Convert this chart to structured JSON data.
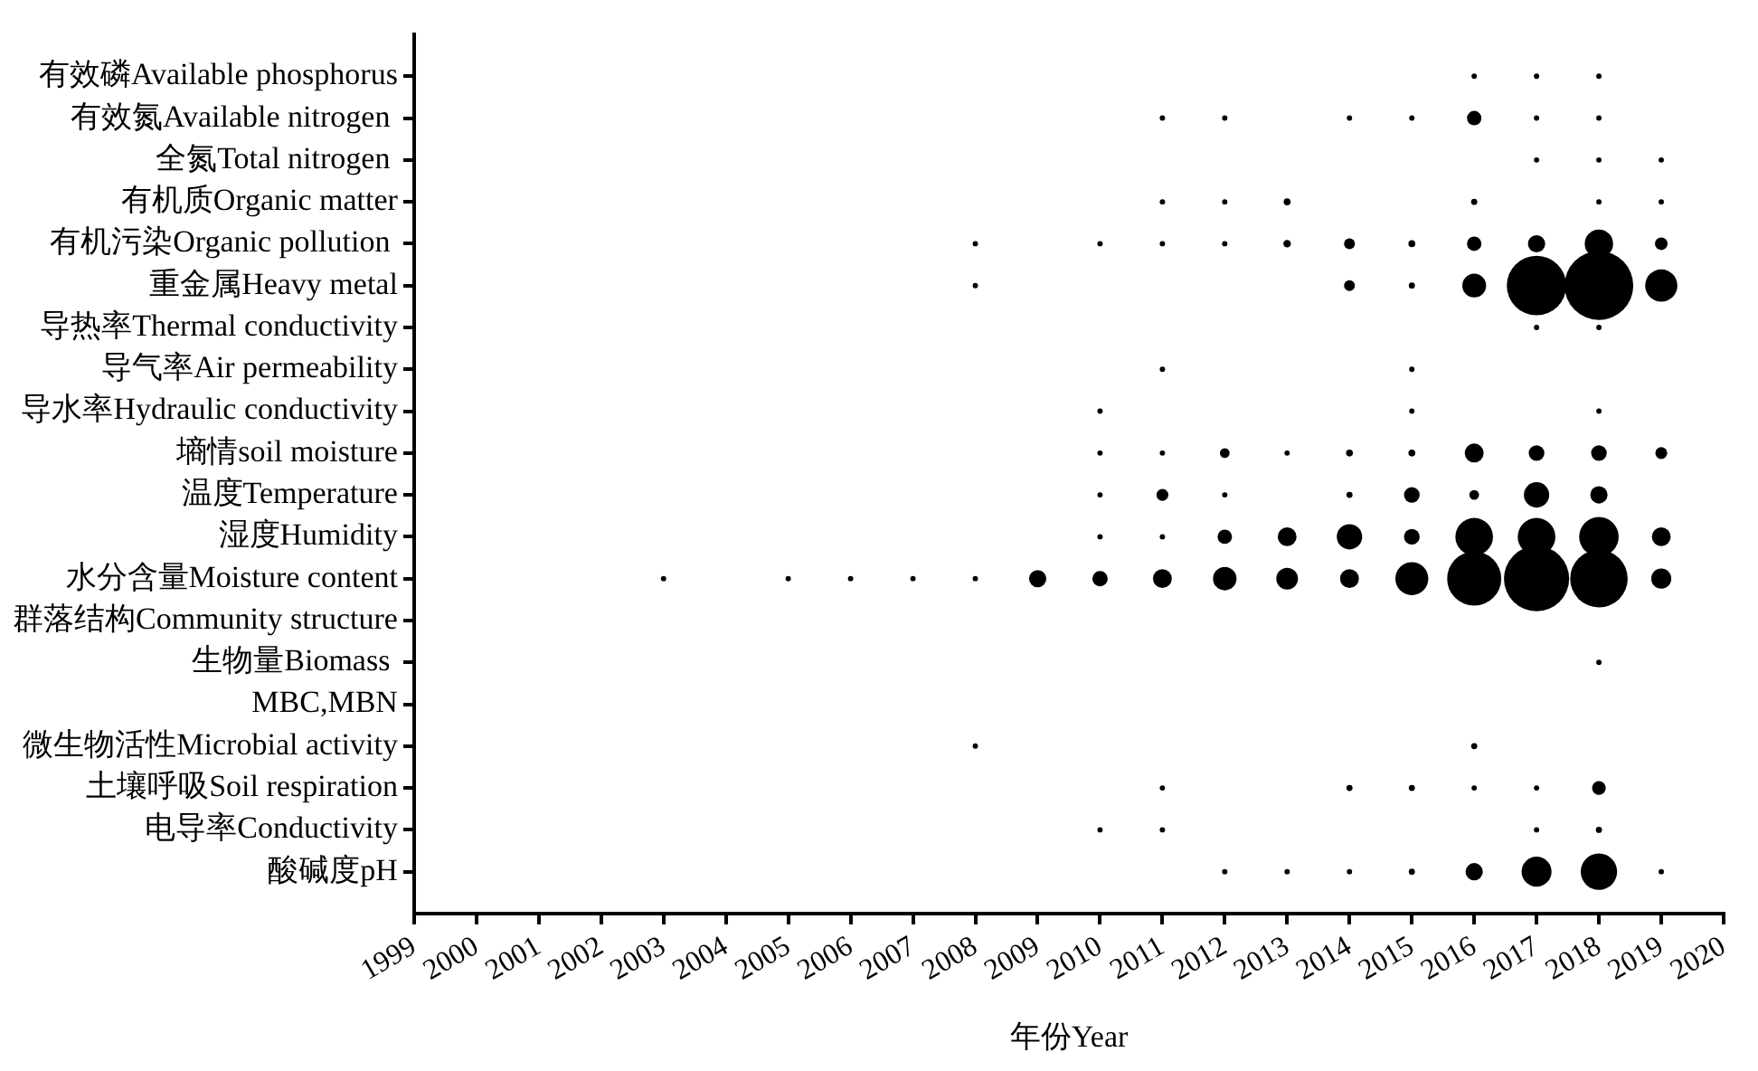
{
  "chart_data": {
    "type": "bubble",
    "orientation": "horizontal",
    "xlabel": "年份Year",
    "categories": [
      "有效磷Available phosphorus",
      "有效氮Available nitrogen ",
      "全氮Total nitrogen ",
      "有机质Organic matter",
      "有机污染Organic pollution ",
      "重金属Heavy metal",
      "导热率Thermal conductivity",
      "导气率Air permeability",
      "导水率Hydraulic conductivity",
      "墒情soil moisture",
      "温度Temperature",
      "湿度Humidity",
      "水分含量Moisture content",
      "群落结构Community structure",
      "生物量Biomass ",
      "MBC,MBN",
      "微生物活性Microbial activity",
      "土壤呼吸Soil respiration",
      "电导率Conductivity",
      "酸碱度pH"
    ],
    "xlim": [
      1999,
      2020
    ],
    "xticks": [
      1999,
      2000,
      2001,
      2002,
      2003,
      2004,
      2005,
      2006,
      2007,
      2008,
      2009,
      2010,
      2011,
      2012,
      2013,
      2014,
      2015,
      2016,
      2017,
      2018,
      2019,
      2020
    ],
    "series": [
      {
        "color": "#000000",
        "values": [
          null,
          null,
          null,
          null,
          null,
          null,
          null,
          null,
          null,
          null,
          null,
          null,
          2003,
          null,
          null,
          null,
          null,
          null,
          null,
          null
        ],
        "sizes": [
          null,
          null,
          null,
          null,
          null,
          null,
          null,
          null,
          null,
          null,
          null,
          null,
          0.006,
          null,
          null,
          null,
          null,
          null,
          null,
          null
        ]
      },
      {
        "color": "#000000",
        "values": [
          null,
          null,
          null,
          null,
          null,
          null,
          null,
          null,
          null,
          null,
          null,
          null,
          2005,
          null,
          null,
          null,
          null,
          null,
          null,
          null
        ],
        "sizes": [
          null,
          null,
          null,
          null,
          null,
          null,
          null,
          null,
          null,
          null,
          null,
          null,
          0.006,
          null,
          null,
          null,
          null,
          null,
          null,
          null
        ]
      },
      {
        "color": "#000000",
        "values": [
          null,
          null,
          null,
          null,
          null,
          null,
          null,
          null,
          null,
          null,
          null,
          null,
          2006,
          null,
          null,
          null,
          null,
          null,
          null,
          null
        ],
        "sizes": [
          null,
          null,
          null,
          null,
          null,
          null,
          null,
          null,
          null,
          null,
          null,
          null,
          0.006,
          null,
          null,
          null,
          null,
          null,
          null,
          null
        ]
      },
      {
        "color": "#000000",
        "values": [
          null,
          null,
          null,
          null,
          null,
          null,
          null,
          null,
          null,
          null,
          null,
          null,
          2007,
          null,
          null,
          null,
          null,
          null,
          null,
          null
        ],
        "sizes": [
          null,
          null,
          null,
          null,
          null,
          null,
          null,
          null,
          null,
          null,
          null,
          null,
          0.006,
          null,
          null,
          null,
          null,
          null,
          null,
          null
        ]
      },
      {
        "color": "#000000",
        "values": [
          null,
          null,
          null,
          null,
          2008,
          2008,
          null,
          null,
          null,
          null,
          null,
          null,
          2008,
          null,
          null,
          null,
          2008,
          null,
          null,
          null
        ],
        "sizes": [
          null,
          null,
          null,
          null,
          0.006,
          0.006,
          null,
          null,
          null,
          null,
          null,
          null,
          0.006,
          null,
          null,
          null,
          0.006,
          null,
          null,
          null
        ]
      },
      {
        "color": "#000000",
        "values": [
          null,
          null,
          null,
          null,
          null,
          null,
          null,
          null,
          null,
          null,
          null,
          null,
          2009,
          null,
          null,
          null,
          null,
          null,
          null,
          null
        ],
        "sizes": [
          null,
          null,
          null,
          null,
          null,
          null,
          null,
          null,
          null,
          null,
          null,
          null,
          0.063,
          null,
          null,
          null,
          null,
          null,
          null,
          null
        ]
      },
      {
        "color": "#000000",
        "values": [
          null,
          null,
          null,
          null,
          2010,
          null,
          null,
          null,
          2010,
          2010,
          2010,
          2010,
          2010,
          null,
          null,
          null,
          null,
          null,
          2010,
          null
        ],
        "sizes": [
          null,
          null,
          null,
          null,
          0.006,
          null,
          null,
          null,
          0.006,
          0.006,
          0.006,
          0.006,
          0.05,
          null,
          null,
          null,
          null,
          null,
          0.006,
          null
        ]
      },
      {
        "color": "#000000",
        "values": [
          null,
          2011,
          null,
          2011,
          2011,
          null,
          null,
          2011,
          null,
          2011,
          2011,
          2011,
          2011,
          null,
          null,
          null,
          null,
          2011,
          2011,
          null
        ],
        "sizes": [
          null,
          0.006,
          null,
          0.006,
          0.006,
          null,
          null,
          0.006,
          null,
          0.006,
          0.03,
          0.006,
          0.075,
          null,
          null,
          null,
          null,
          0.006,
          0.006,
          null
        ]
      },
      {
        "color": "#000000",
        "values": [
          null,
          2012,
          null,
          2012,
          2012,
          null,
          null,
          null,
          null,
          2012,
          2012,
          2012,
          2012,
          null,
          null,
          null,
          null,
          null,
          null,
          2012
        ],
        "sizes": [
          null,
          0.006,
          null,
          0.006,
          0.006,
          null,
          null,
          null,
          null,
          0.02,
          0.006,
          0.044,
          0.117,
          null,
          null,
          null,
          null,
          null,
          null,
          0.006
        ]
      },
      {
        "color": "#000000",
        "values": [
          null,
          null,
          null,
          2013,
          2013,
          null,
          null,
          null,
          null,
          2013,
          null,
          2013,
          2013,
          null,
          null,
          null,
          null,
          null,
          null,
          2013
        ],
        "sizes": [
          null,
          null,
          null,
          0.01,
          0.012,
          null,
          null,
          null,
          null,
          0.006,
          null,
          0.075,
          0.1,
          null,
          null,
          null,
          null,
          null,
          null,
          0.006
        ]
      },
      {
        "color": "#000000",
        "values": [
          null,
          2014,
          null,
          null,
          2014,
          2014,
          null,
          null,
          null,
          2014,
          2014,
          2014,
          2014,
          null,
          null,
          null,
          null,
          2014,
          null,
          2014
        ],
        "sizes": [
          null,
          0.006,
          null,
          null,
          0.025,
          0.025,
          null,
          null,
          null,
          0.01,
          0.008,
          0.136,
          0.075,
          null,
          null,
          null,
          null,
          0.008,
          null,
          0.006
        ]
      },
      {
        "color": "#000000",
        "values": [
          null,
          2015,
          null,
          null,
          2015,
          2015,
          null,
          2015,
          2015,
          2015,
          2015,
          2015,
          2015,
          null,
          null,
          null,
          null,
          2015,
          null,
          2015
        ],
        "sizes": [
          null,
          0.006,
          null,
          null,
          0.01,
          0.008,
          null,
          0.006,
          0.006,
          0.01,
          0.052,
          0.052,
          0.23,
          null,
          null,
          null,
          null,
          0.008,
          null,
          0.008
        ]
      },
      {
        "color": "#000000",
        "values": [
          2016,
          2016,
          null,
          2016,
          2016,
          2016,
          null,
          null,
          null,
          2016,
          2016,
          2016,
          2016,
          null,
          null,
          null,
          2016,
          2016,
          null,
          2016
        ],
        "sizes": [
          0.006,
          0.044,
          null,
          0.008,
          0.044,
          0.12,
          null,
          null,
          null,
          0.076,
          0.02,
          0.3,
          0.62,
          null,
          null,
          null,
          0.008,
          0.006,
          null,
          0.063
        ]
      },
      {
        "color": "#000000",
        "values": [
          2017,
          2017,
          2017,
          null,
          2017,
          2017,
          2017,
          null,
          null,
          2017,
          2017,
          2017,
          2017,
          null,
          null,
          null,
          null,
          2017,
          2017,
          2017
        ],
        "sizes": [
          0.006,
          0.006,
          0.006,
          null,
          0.063,
          0.75,
          0.006,
          null,
          null,
          0.052,
          0.136,
          0.3,
          0.9,
          null,
          null,
          null,
          null,
          0.006,
          0.006,
          0.19
        ]
      },
      {
        "color": "#000000",
        "values": [
          2018,
          2018,
          2018,
          2018,
          2018,
          2018,
          2018,
          null,
          2018,
          2018,
          2018,
          2018,
          2018,
          null,
          2018,
          null,
          null,
          2018,
          2018,
          2018
        ],
        "sizes": [
          0.006,
          0.006,
          0.006,
          0.006,
          0.17,
          1,
          0.006,
          null,
          0.006,
          0.052,
          0.063,
          0.33,
          0.7,
          null,
          0.006,
          null,
          null,
          0.04,
          0.008,
          0.28
        ]
      },
      {
        "color": "#000000",
        "values": [
          null,
          null,
          2019,
          2019,
          2019,
          2019,
          null,
          null,
          null,
          2019,
          null,
          2019,
          2019,
          null,
          null,
          null,
          null,
          null,
          null,
          2019
        ],
        "sizes": [
          null,
          null,
          0.006,
          0.006,
          0.034,
          0.22,
          null,
          null,
          null,
          0.03,
          null,
          0.075,
          0.085,
          null,
          null,
          null,
          null,
          null,
          null,
          0.006
        ]
      }
    ]
  }
}
